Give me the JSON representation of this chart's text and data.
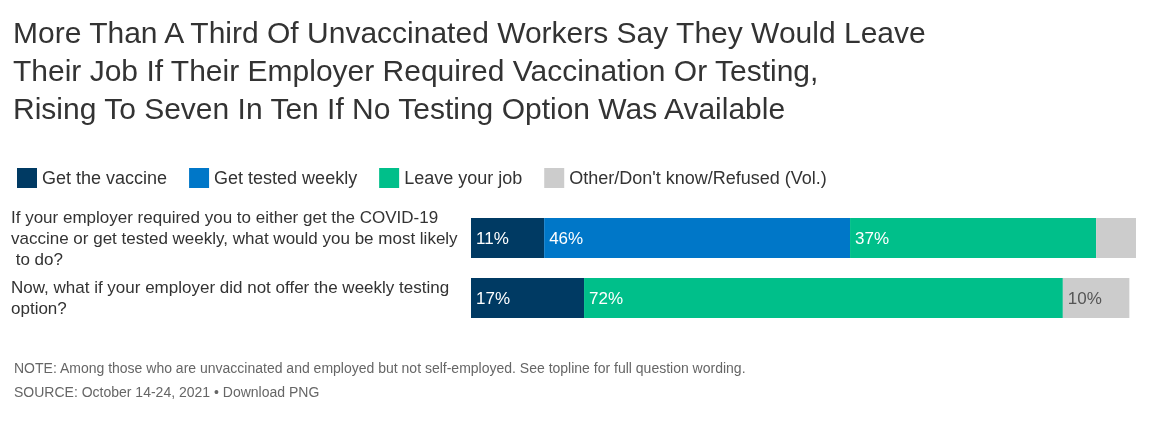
{
  "chart_data": {
    "type": "bar",
    "orientation": "horizontal",
    "stacked": true,
    "title": "More Than A Third Of Unvaccinated Workers Say They Would Leave Their Job If Their Employer Required Vaccination Or Testing, Rising To Seven In Ten If No Testing Option Was Available",
    "categories": [
      "If your employer required you to either get the COVID-19 vaccine or get tested weekly, what would you be most likely to do?",
      "Now, what if your employer did not offer the weekly testing option?"
    ],
    "series": [
      {
        "name": "Get the vaccine",
        "color": "#003a63",
        "values": [
          11,
          17
        ],
        "value_labels": [
          "11%",
          "17%"
        ]
      },
      {
        "name": "Get tested weekly",
        "color": "#0077c8",
        "values": [
          46,
          0
        ],
        "value_labels": [
          "46%",
          null
        ]
      },
      {
        "name": "Leave your job",
        "color": "#00bf8a",
        "values": [
          37,
          72
        ],
        "value_labels": [
          "37%",
          "72%"
        ]
      },
      {
        "name": "Other/Don't know/Refused (Vol.)",
        "color": "#cccccc",
        "values": [
          6,
          10
        ],
        "value_labels": [
          null,
          "10%"
        ]
      }
    ],
    "xlim": [
      0,
      100
    ],
    "legend": "top left",
    "annotations": [
      "NOTE: Among those who are unvaccinated and employed but not self-employed. See topline for full question wording.",
      "SOURCE: October 14-24, 2021 • Download PNG"
    ]
  }
}
